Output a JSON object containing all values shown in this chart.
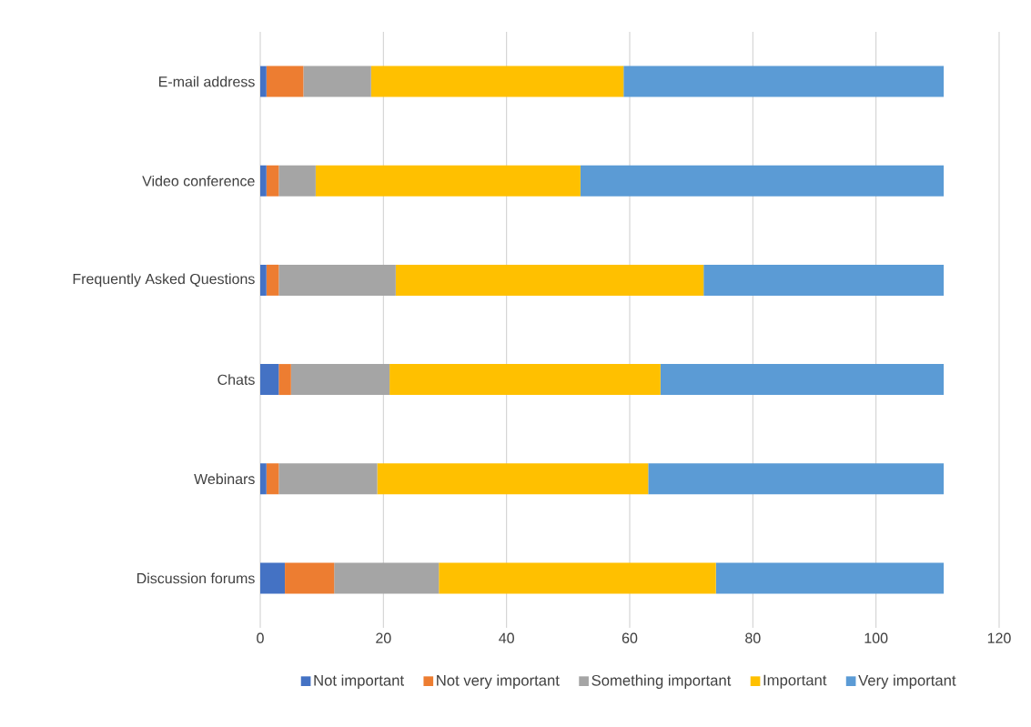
{
  "chart_data": {
    "type": "bar",
    "orientation": "horizontal",
    "stacked": true,
    "categories": [
      "E-mail address",
      "Video conference",
      "Frequently Asked Questions",
      "Chats",
      "Webinars",
      "Discussion forums"
    ],
    "series": [
      {
        "name": "Not important",
        "color": "#4472c4",
        "values": [
          1,
          1,
          1,
          3,
          1,
          4
        ]
      },
      {
        "name": "Not very important",
        "color": "#ed7d31",
        "values": [
          6,
          2,
          2,
          2,
          2,
          8
        ]
      },
      {
        "name": "Something important",
        "color": "#a5a5a5",
        "values": [
          11,
          6,
          19,
          16,
          16,
          17
        ]
      },
      {
        "name": "Important",
        "color": "#ffc000",
        "values": [
          41,
          43,
          50,
          44,
          44,
          45
        ]
      },
      {
        "name": "Very important",
        "color": "#5b9bd5",
        "values": [
          52,
          59,
          39,
          46,
          48,
          37
        ]
      }
    ],
    "xlim": [
      0,
      120
    ],
    "xticks": [
      0,
      20,
      40,
      60,
      80,
      100,
      120
    ],
    "grid": "x",
    "legend": "bottom"
  }
}
